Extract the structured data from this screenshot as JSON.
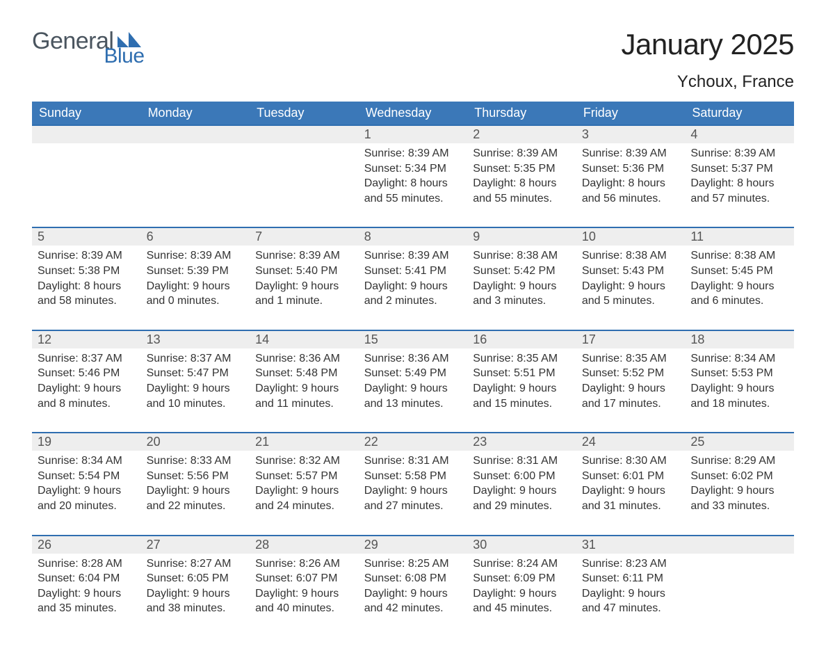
{
  "brand": {
    "word1": "General",
    "word2": "Blue"
  },
  "title": "January 2025",
  "location": "Ychoux, France",
  "colors": {
    "header_blue": "#3b78b8",
    "accent_blue": "#2f6eb0",
    "logo_gray": "#4a555f",
    "logo_blue": "#2f6eb0",
    "date_row_bg": "#eeeeee",
    "page_bg": "#ffffff",
    "text_dark": "#333333"
  },
  "typography": {
    "month_title_fontsize": 42,
    "location_fontsize": 24,
    "header_fontsize": 18,
    "date_fontsize": 18,
    "body_fontsize": 16,
    "font_family": "Arial"
  },
  "weekdays": [
    "Sunday",
    "Monday",
    "Tuesday",
    "Wednesday",
    "Thursday",
    "Friday",
    "Saturday"
  ],
  "weeks": [
    [
      null,
      null,
      null,
      {
        "n": "1",
        "sr": "Sunrise: 8:39 AM",
        "ss": "Sunset: 5:34 PM",
        "d1": "Daylight: 8 hours",
        "d2": "and 55 minutes."
      },
      {
        "n": "2",
        "sr": "Sunrise: 8:39 AM",
        "ss": "Sunset: 5:35 PM",
        "d1": "Daylight: 8 hours",
        "d2": "and 55 minutes."
      },
      {
        "n": "3",
        "sr": "Sunrise: 8:39 AM",
        "ss": "Sunset: 5:36 PM",
        "d1": "Daylight: 8 hours",
        "d2": "and 56 minutes."
      },
      {
        "n": "4",
        "sr": "Sunrise: 8:39 AM",
        "ss": "Sunset: 5:37 PM",
        "d1": "Daylight: 8 hours",
        "d2": "and 57 minutes."
      }
    ],
    [
      {
        "n": "5",
        "sr": "Sunrise: 8:39 AM",
        "ss": "Sunset: 5:38 PM",
        "d1": "Daylight: 8 hours",
        "d2": "and 58 minutes."
      },
      {
        "n": "6",
        "sr": "Sunrise: 8:39 AM",
        "ss": "Sunset: 5:39 PM",
        "d1": "Daylight: 9 hours",
        "d2": "and 0 minutes."
      },
      {
        "n": "7",
        "sr": "Sunrise: 8:39 AM",
        "ss": "Sunset: 5:40 PM",
        "d1": "Daylight: 9 hours",
        "d2": "and 1 minute."
      },
      {
        "n": "8",
        "sr": "Sunrise: 8:39 AM",
        "ss": "Sunset: 5:41 PM",
        "d1": "Daylight: 9 hours",
        "d2": "and 2 minutes."
      },
      {
        "n": "9",
        "sr": "Sunrise: 8:38 AM",
        "ss": "Sunset: 5:42 PM",
        "d1": "Daylight: 9 hours",
        "d2": "and 3 minutes."
      },
      {
        "n": "10",
        "sr": "Sunrise: 8:38 AM",
        "ss": "Sunset: 5:43 PM",
        "d1": "Daylight: 9 hours",
        "d2": "and 5 minutes."
      },
      {
        "n": "11",
        "sr": "Sunrise: 8:38 AM",
        "ss": "Sunset: 5:45 PM",
        "d1": "Daylight: 9 hours",
        "d2": "and 6 minutes."
      }
    ],
    [
      {
        "n": "12",
        "sr": "Sunrise: 8:37 AM",
        "ss": "Sunset: 5:46 PM",
        "d1": "Daylight: 9 hours",
        "d2": "and 8 minutes."
      },
      {
        "n": "13",
        "sr": "Sunrise: 8:37 AM",
        "ss": "Sunset: 5:47 PM",
        "d1": "Daylight: 9 hours",
        "d2": "and 10 minutes."
      },
      {
        "n": "14",
        "sr": "Sunrise: 8:36 AM",
        "ss": "Sunset: 5:48 PM",
        "d1": "Daylight: 9 hours",
        "d2": "and 11 minutes."
      },
      {
        "n": "15",
        "sr": "Sunrise: 8:36 AM",
        "ss": "Sunset: 5:49 PM",
        "d1": "Daylight: 9 hours",
        "d2": "and 13 minutes."
      },
      {
        "n": "16",
        "sr": "Sunrise: 8:35 AM",
        "ss": "Sunset: 5:51 PM",
        "d1": "Daylight: 9 hours",
        "d2": "and 15 minutes."
      },
      {
        "n": "17",
        "sr": "Sunrise: 8:35 AM",
        "ss": "Sunset: 5:52 PM",
        "d1": "Daylight: 9 hours",
        "d2": "and 17 minutes."
      },
      {
        "n": "18",
        "sr": "Sunrise: 8:34 AM",
        "ss": "Sunset: 5:53 PM",
        "d1": "Daylight: 9 hours",
        "d2": "and 18 minutes."
      }
    ],
    [
      {
        "n": "19",
        "sr": "Sunrise: 8:34 AM",
        "ss": "Sunset: 5:54 PM",
        "d1": "Daylight: 9 hours",
        "d2": "and 20 minutes."
      },
      {
        "n": "20",
        "sr": "Sunrise: 8:33 AM",
        "ss": "Sunset: 5:56 PM",
        "d1": "Daylight: 9 hours",
        "d2": "and 22 minutes."
      },
      {
        "n": "21",
        "sr": "Sunrise: 8:32 AM",
        "ss": "Sunset: 5:57 PM",
        "d1": "Daylight: 9 hours",
        "d2": "and 24 minutes."
      },
      {
        "n": "22",
        "sr": "Sunrise: 8:31 AM",
        "ss": "Sunset: 5:58 PM",
        "d1": "Daylight: 9 hours",
        "d2": "and 27 minutes."
      },
      {
        "n": "23",
        "sr": "Sunrise: 8:31 AM",
        "ss": "Sunset: 6:00 PM",
        "d1": "Daylight: 9 hours",
        "d2": "and 29 minutes."
      },
      {
        "n": "24",
        "sr": "Sunrise: 8:30 AM",
        "ss": "Sunset: 6:01 PM",
        "d1": "Daylight: 9 hours",
        "d2": "and 31 minutes."
      },
      {
        "n": "25",
        "sr": "Sunrise: 8:29 AM",
        "ss": "Sunset: 6:02 PM",
        "d1": "Daylight: 9 hours",
        "d2": "and 33 minutes."
      }
    ],
    [
      {
        "n": "26",
        "sr": "Sunrise: 8:28 AM",
        "ss": "Sunset: 6:04 PM",
        "d1": "Daylight: 9 hours",
        "d2": "and 35 minutes."
      },
      {
        "n": "27",
        "sr": "Sunrise: 8:27 AM",
        "ss": "Sunset: 6:05 PM",
        "d1": "Daylight: 9 hours",
        "d2": "and 38 minutes."
      },
      {
        "n": "28",
        "sr": "Sunrise: 8:26 AM",
        "ss": "Sunset: 6:07 PM",
        "d1": "Daylight: 9 hours",
        "d2": "and 40 minutes."
      },
      {
        "n": "29",
        "sr": "Sunrise: 8:25 AM",
        "ss": "Sunset: 6:08 PM",
        "d1": "Daylight: 9 hours",
        "d2": "and 42 minutes."
      },
      {
        "n": "30",
        "sr": "Sunrise: 8:24 AM",
        "ss": "Sunset: 6:09 PM",
        "d1": "Daylight: 9 hours",
        "d2": "and 45 minutes."
      },
      {
        "n": "31",
        "sr": "Sunrise: 8:23 AM",
        "ss": "Sunset: 6:11 PM",
        "d1": "Daylight: 9 hours",
        "d2": "and 47 minutes."
      },
      null
    ]
  ]
}
